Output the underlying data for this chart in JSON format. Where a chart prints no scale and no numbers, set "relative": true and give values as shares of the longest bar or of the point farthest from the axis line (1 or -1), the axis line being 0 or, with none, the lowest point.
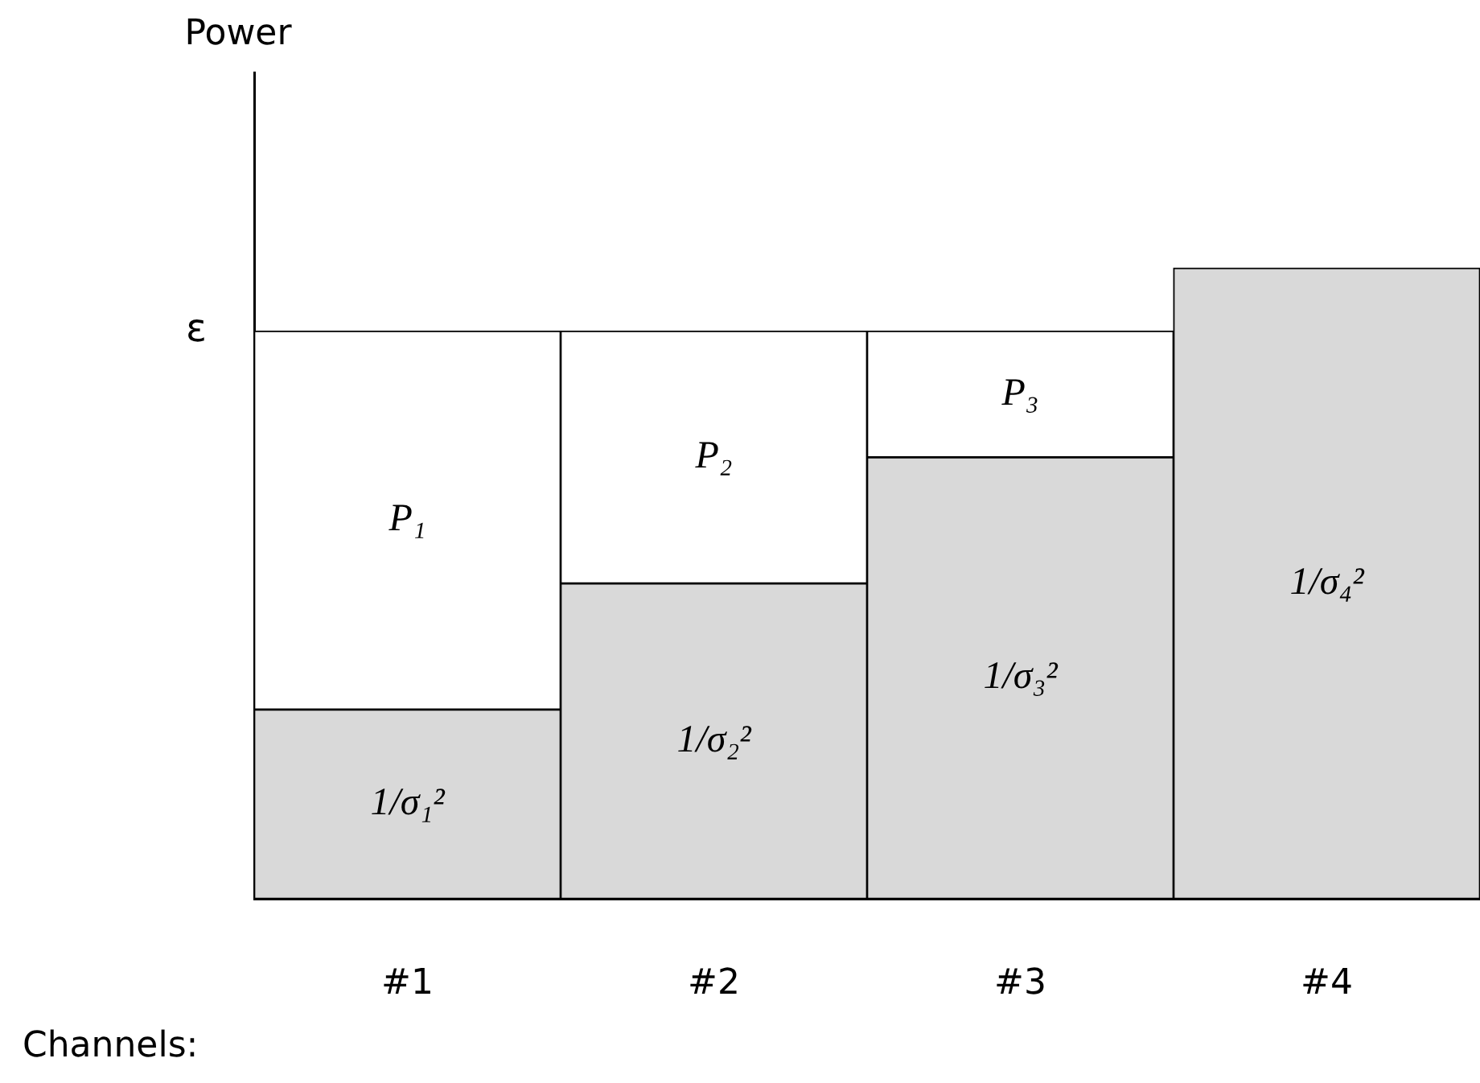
{
  "chart_data": {
    "type": "bar",
    "stacked": true,
    "relative": true,
    "xlabel": "Channels:",
    "categories": [
      "#1",
      "#2",
      "#3",
      "#4"
    ],
    "series": [
      {
        "color": "#d9d9d9",
        "values": [
          0.3,
          0.5,
          0.7,
          1
        ]
      },
      {
        "color": "#ffffff",
        "values": [
          0.6,
          0.4,
          0.2,
          null
        ]
      }
    ],
    "annotations": [
      "Power",
      "ε",
      "1/σ₁²",
      "1/σ₂²",
      "1/σ₃²",
      "1/σ₄²",
      "P₁",
      "P₂",
      "P₃"
    ],
    "grid": false,
    "legend": false
  }
}
